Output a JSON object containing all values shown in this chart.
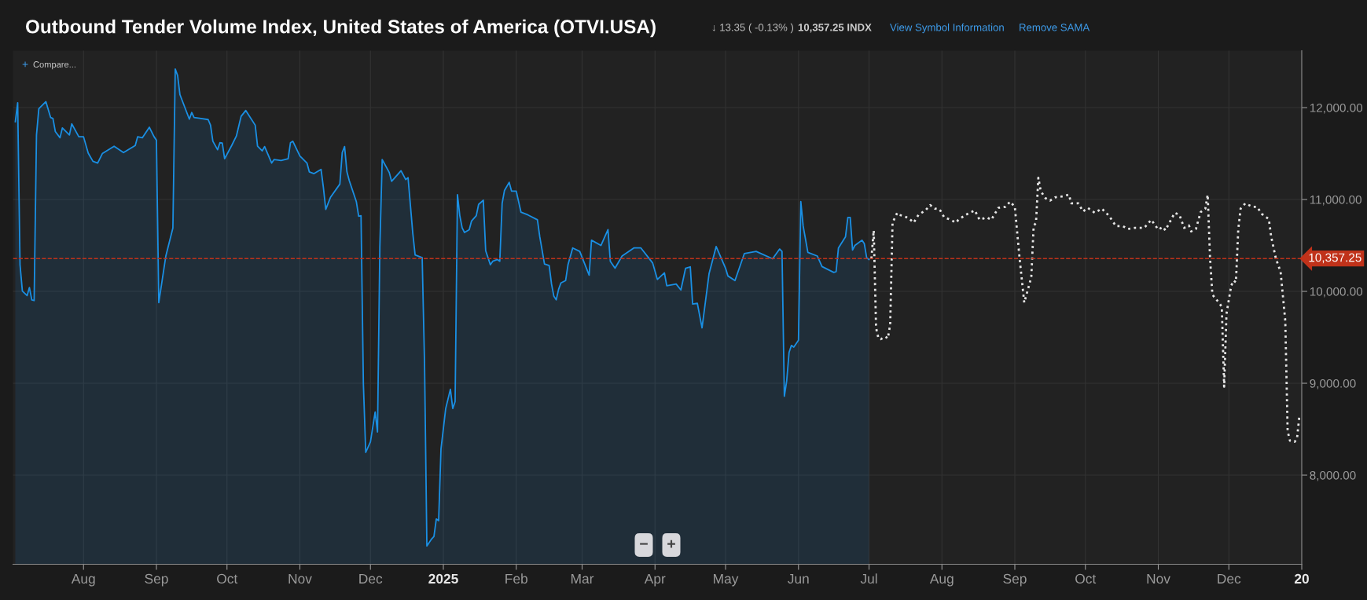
{
  "chart_data": {
    "type": "area",
    "title": "Outbound Tender Volume Index, United States of America (OTVI.USA)",
    "annotations": [
      "↓ 13.35 ( -0.13% )",
      "10,357.25 INDX",
      "View Symbol Information",
      "Remove SAMA",
      "+",
      "Compare...",
      "−",
      "+"
    ],
    "xlim": [
      "2024-07-02",
      "2026-01-01"
    ],
    "xticks": [
      {
        "value": "2024-08-01",
        "label": "Aug"
      },
      {
        "value": "2024-09-01",
        "label": "Sep"
      },
      {
        "value": "2024-10-01",
        "label": "Oct"
      },
      {
        "value": "2024-11-01",
        "label": "Nov"
      },
      {
        "value": "2024-12-01",
        "label": "Dec"
      },
      {
        "value": "2025-01-01",
        "label": "2025"
      },
      {
        "value": "2025-02-01",
        "label": "Feb"
      },
      {
        "value": "2025-03-01",
        "label": "Mar"
      },
      {
        "value": "2025-04-01",
        "label": "Apr"
      },
      {
        "value": "2025-05-01",
        "label": "May"
      },
      {
        "value": "2025-06-01",
        "label": "Jun"
      },
      {
        "value": "2025-07-01",
        "label": "Jul"
      },
      {
        "value": "2025-08-01",
        "label": "Aug"
      },
      {
        "value": "2025-09-01",
        "label": "Sep"
      },
      {
        "value": "2025-10-01",
        "label": "Oct"
      },
      {
        "value": "2025-11-01",
        "label": "Nov"
      },
      {
        "value": "2025-12-01",
        "label": "Dec"
      },
      {
        "value": "2026-01-01",
        "label": "20"
      }
    ],
    "ylim": [
      7030,
      12620
    ],
    "yticks": [
      {
        "value": 8000,
        "label": "8,000.00"
      },
      {
        "value": 9000,
        "label": "9,000.00"
      },
      {
        "value": 10000,
        "label": "10,000.00"
      },
      {
        "value": 11000,
        "label": "11,000.00"
      },
      {
        "value": 12000,
        "label": "12,000.00"
      }
    ],
    "grid": true,
    "ref_lines": [
      {
        "axis": "y",
        "value": 10357.25,
        "label": "10,357.25",
        "color": "#c0321a",
        "line_style": "dashed"
      }
    ],
    "series": [
      {
        "color": "#1a8fe3",
        "line_style": "solid",
        "x": [
          "2024-07-03",
          "2024-07-04",
          "2024-07-05",
          "2024-07-06",
          "2024-07-08",
          "2024-07-09",
          "2024-07-10",
          "2024-07-11",
          "2024-07-12",
          "2024-07-13",
          "2024-07-16",
          "2024-07-18",
          "2024-07-19",
          "2024-07-20",
          "2024-07-22",
          "2024-07-23",
          "2024-07-26",
          "2024-07-27",
          "2024-07-30",
          "2024-08-01",
          "2024-08-03",
          "2024-08-05",
          "2024-08-07",
          "2024-08-09",
          "2024-08-14",
          "2024-08-18",
          "2024-08-23",
          "2024-08-24",
          "2024-08-26",
          "2024-08-29",
          "2024-08-31",
          "2024-09-01",
          "2024-09-02",
          "2024-09-05",
          "2024-09-08",
          "2024-09-09",
          "2024-09-10",
          "2024-09-11",
          "2024-09-15",
          "2024-09-16",
          "2024-09-17",
          "2024-09-23",
          "2024-09-24",
          "2024-09-25",
          "2024-09-27",
          "2024-09-28",
          "2024-09-29",
          "2024-09-30",
          "2024-10-03",
          "2024-10-05",
          "2024-10-07",
          "2024-10-09",
          "2024-10-13",
          "2024-10-14",
          "2024-10-16",
          "2024-10-17",
          "2024-10-20",
          "2024-10-21",
          "2024-10-24",
          "2024-10-27",
          "2024-10-28",
          "2024-10-29",
          "2024-11-01",
          "2024-11-04",
          "2024-11-05",
          "2024-11-07",
          "2024-11-10",
          "2024-11-11",
          "2024-11-12",
          "2024-11-14",
          "2024-11-18",
          "2024-11-19",
          "2024-11-20",
          "2024-11-21",
          "2024-11-22",
          "2024-11-25",
          "2024-11-26",
          "2024-11-27",
          "2024-11-28",
          "2024-11-29",
          "2024-12-01",
          "2024-12-03",
          "2024-12-04",
          "2024-12-05",
          "2024-12-06",
          "2024-12-09",
          "2024-12-10",
          "2024-12-14",
          "2024-12-16",
          "2024-12-17",
          "2024-12-19",
          "2024-12-20",
          "2024-12-23",
          "2024-12-24",
          "2024-12-25",
          "2024-12-27",
          "2024-12-28",
          "2024-12-29",
          "2024-12-30",
          "2024-12-31",
          "2025-01-02",
          "2025-01-04",
          "2025-01-05",
          "2025-01-06",
          "2025-01-07",
          "2025-01-08",
          "2025-01-09",
          "2025-01-10",
          "2025-01-12",
          "2025-01-13",
          "2025-01-15",
          "2025-01-16",
          "2025-01-18",
          "2025-01-19",
          "2025-01-21",
          "2025-01-22",
          "2025-01-24",
          "2025-01-25",
          "2025-01-26",
          "2025-01-27",
          "2025-01-29",
          "2025-01-30",
          "2025-02-01",
          "2025-02-03",
          "2025-02-06",
          "2025-02-10",
          "2025-02-11",
          "2025-02-13",
          "2025-02-15",
          "2025-02-16",
          "2025-02-17",
          "2025-02-18",
          "2025-02-19",
          "2025-02-20",
          "2025-02-22",
          "2025-02-23",
          "2025-02-25",
          "2025-02-28",
          "2025-03-04",
          "2025-03-05",
          "2025-03-09",
          "2025-03-12",
          "2025-03-13",
          "2025-03-15",
          "2025-03-18",
          "2025-03-23",
          "2025-03-26",
          "2025-03-31",
          "2025-04-02",
          "2025-04-05",
          "2025-04-06",
          "2025-04-10",
          "2025-04-12",
          "2025-04-14",
          "2025-04-16",
          "2025-04-17",
          "2025-04-19",
          "2025-04-21",
          "2025-04-24",
          "2025-04-27",
          "2025-05-01",
          "2025-05-02",
          "2025-05-05",
          "2025-05-09",
          "2025-05-14",
          "2025-05-21",
          "2025-05-24",
          "2025-05-25",
          "2025-05-26",
          "2025-05-27",
          "2025-05-28",
          "2025-05-29",
          "2025-05-30",
          "2025-06-01",
          "2025-06-02",
          "2025-06-03",
          "2025-06-05",
          "2025-06-09",
          "2025-06-11",
          "2025-06-16",
          "2025-06-17",
          "2025-06-18",
          "2025-06-21",
          "2025-06-22",
          "2025-06-23",
          "2025-06-24",
          "2025-06-25",
          "2025-06-28",
          "2025-06-29",
          "2025-06-30",
          "2025-07-01"
        ],
        "values": [
          11847,
          12053,
          10290,
          10004,
          9954,
          10042,
          9908,
          9900,
          11702,
          11989,
          12065,
          11893,
          11882,
          11740,
          11672,
          11779,
          11702,
          11824,
          11683,
          11683,
          11504,
          11416,
          11397,
          11500,
          11580,
          11511,
          11588,
          11683,
          11672,
          11786,
          11683,
          11645,
          9878,
          10385,
          10691,
          12420,
          12351,
          12141,
          11874,
          11947,
          11893,
          11870,
          11809,
          11634,
          11542,
          11618,
          11615,
          11443,
          11588,
          11691,
          11905,
          11969,
          11809,
          11580,
          11530,
          11576,
          11397,
          11435,
          11424,
          11443,
          11618,
          11634,
          11473,
          11397,
          11301,
          11282,
          11328,
          11130,
          10893,
          11023,
          11168,
          11511,
          11576,
          11301,
          11206,
          10977,
          10817,
          10824,
          8992,
          8248,
          8363,
          8687,
          8470,
          10481,
          11435,
          11294,
          11198,
          11313,
          11217,
          11237,
          10634,
          10397,
          10366,
          9221,
          7229,
          7305,
          7332,
          7523,
          7504,
          8286,
          8725,
          8935,
          8725,
          8802,
          11053,
          10824,
          10691,
          10641,
          10672,
          10767,
          10824,
          10947,
          10992,
          10443,
          10290,
          10328,
          10347,
          10328,
          10958,
          11099,
          11187,
          11091,
          11091,
          10863,
          10832,
          10779,
          10595,
          10298,
          10282,
          10080,
          9946,
          9908,
          10023,
          10092,
          10118,
          10290,
          10473,
          10435,
          10176,
          10557,
          10500,
          10672,
          10328,
          10252,
          10385,
          10473,
          10473,
          10309,
          10130,
          10202,
          10061,
          10080,
          10015,
          10252,
          10267,
          9862,
          9870,
          9603,
          10195,
          10488,
          10252,
          10168,
          10118,
          10412,
          10435,
          10355,
          10461,
          10435,
          8859,
          9027,
          9336,
          9412,
          9393,
          9469,
          10977,
          10710,
          10424,
          10385,
          10271,
          10206,
          10214,
          10473,
          10595,
          10805,
          10805,
          10450,
          10500,
          10557,
          10519,
          10366,
          10347
        ]
      },
      {
        "type": "line",
        "color": "#e6e6e6",
        "line_style": "dotted",
        "x": [
          "2025-07-02",
          "2025-07-03",
          "2025-07-04",
          "2025-07-05",
          "2025-07-06",
          "2025-07-08",
          "2025-07-09",
          "2025-07-10",
          "2025-07-11",
          "2025-07-13",
          "2025-07-14",
          "2025-07-16",
          "2025-07-18",
          "2025-07-20",
          "2025-07-22",
          "2025-07-25",
          "2025-07-27",
          "2025-07-29",
          "2025-07-31",
          "2025-08-02",
          "2025-08-04",
          "2025-08-07",
          "2025-08-08",
          "2025-08-11",
          "2025-08-15",
          "2025-08-17",
          "2025-08-20",
          "2025-08-22",
          "2025-08-25",
          "2025-08-28",
          "2025-08-30",
          "2025-09-01",
          "2025-09-03",
          "2025-09-05",
          "2025-09-07",
          "2025-09-08",
          "2025-09-09",
          "2025-09-10",
          "2025-09-11",
          "2025-09-12",
          "2025-09-14",
          "2025-09-16",
          "2025-09-18",
          "2025-09-21",
          "2025-09-24",
          "2025-09-25",
          "2025-09-28",
          "2025-09-30",
          "2025-10-02",
          "2025-10-05",
          "2025-10-08",
          "2025-10-11",
          "2025-10-14",
          "2025-10-17",
          "2025-10-19",
          "2025-10-22",
          "2025-10-26",
          "2025-10-29",
          "2025-11-01",
          "2025-11-03",
          "2025-11-04",
          "2025-11-08",
          "2025-11-10",
          "2025-11-12",
          "2025-11-14",
          "2025-11-15",
          "2025-11-17",
          "2025-11-19",
          "2025-11-21",
          "2025-11-22",
          "2025-11-23",
          "2025-11-24",
          "2025-11-27",
          "2025-11-28",
          "2025-11-29",
          "2025-11-30",
          "2025-12-02",
          "2025-12-03",
          "2025-12-04",
          "2025-12-05",
          "2025-12-06",
          "2025-12-08",
          "2025-12-11",
          "2025-12-13",
          "2025-12-15",
          "2025-12-18",
          "2025-12-19",
          "2025-12-21",
          "2025-12-23",
          "2025-12-25",
          "2025-12-26",
          "2025-12-27",
          "2025-12-29",
          "2025-12-30",
          "2025-12-31"
        ],
        "values": [
          10357,
          10664,
          9603,
          9488,
          9480,
          9507,
          9488,
          9641,
          10748,
          10855,
          10832,
          10817,
          10794,
          10748,
          10832,
          10882,
          10939,
          10901,
          10893,
          10805,
          10786,
          10748,
          10779,
          10832,
          10882,
          10779,
          10805,
          10779,
          10909,
          10920,
          10977,
          10920,
          10366,
          9878,
          10061,
          10156,
          10710,
          10748,
          11237,
          11092,
          11015,
          10988,
          11023,
          11034,
          11053,
          10958,
          10958,
          10870,
          10909,
          10855,
          10901,
          10824,
          10710,
          10710,
          10679,
          10691,
          10691,
          10779,
          10672,
          10702,
          10664,
          10855,
          10832,
          10691,
          10718,
          10653,
          10679,
          10863,
          10901,
          11053,
          10366,
          9965,
          9870,
          9832,
          8962,
          9756,
          10061,
          10118,
          10099,
          10672,
          10901,
          10958,
          10920,
          10920,
          10844,
          10786,
          10595,
          10357,
          10214,
          9679,
          8477,
          8374,
          8363,
          8401,
          8649
        ]
      }
    ]
  }
}
